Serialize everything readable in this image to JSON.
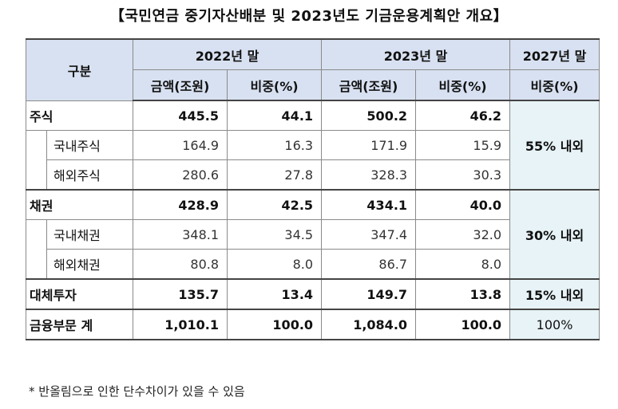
{
  "title": "【국민연금 중기자산배분 및 2023년도 기금운용계획안 개요】",
  "header": {
    "category": "구분",
    "year_2022": "2022년 말",
    "year_2023": "2023년 말",
    "year_2027": "2027년 말",
    "amount": "금액(조원)",
    "share": "비중(%)"
  },
  "rows": {
    "stocks": {
      "label": "주식",
      "a22": "445.5",
      "s22": "44.1",
      "a23": "500.2",
      "s23": "46.2"
    },
    "domestic_stocks": {
      "label": "국내주식",
      "a22": "164.9",
      "s22": "16.3",
      "a23": "171.9",
      "s23": "15.9"
    },
    "foreign_stocks": {
      "label": "해외주식",
      "a22": "280.6",
      "s22": "27.8",
      "a23": "328.3",
      "s23": "30.3"
    },
    "bonds": {
      "label": "채권",
      "a22": "428.9",
      "s22": "42.5",
      "a23": "434.1",
      "s23": "40.0"
    },
    "domestic_bonds": {
      "label": "국내채권",
      "a22": "348.1",
      "s22": "34.5",
      "a23": "347.4",
      "s23": "32.0"
    },
    "foreign_bonds": {
      "label": "해외채권",
      "a22": "80.8",
      "s22": "8.0",
      "a23": "86.7",
      "s23": "8.0"
    },
    "alternative": {
      "label": "대체투자",
      "a22": "135.7",
      "s22": "13.4",
      "a23": "149.7",
      "s23": "13.8"
    },
    "total": {
      "label": "금융부문 계",
      "a22": "1,010.1",
      "s22": "100.0",
      "a23": "1,084.0",
      "s23": "100.0"
    }
  },
  "target_2027": {
    "stocks": "55% 내외",
    "bonds": "30% 내외",
    "alternative": "15% 내외",
    "total": "100%"
  },
  "footnote": "* 반올림으로 인한 단수차이가 있을 수 있음"
}
